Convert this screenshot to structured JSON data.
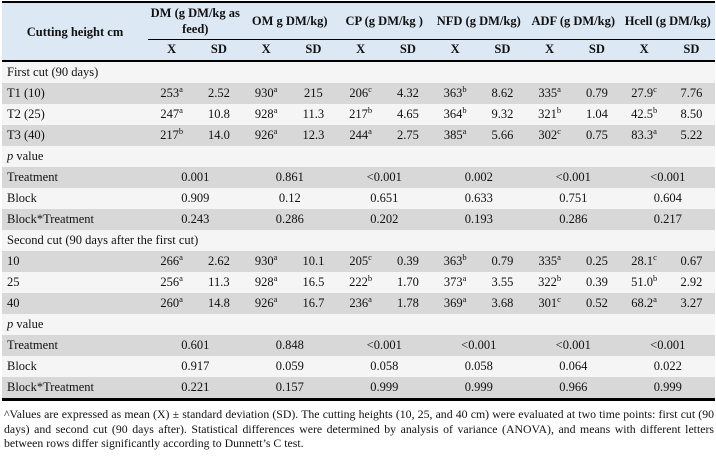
{
  "colors": {
    "header_bg": "#dce8f4",
    "stripe_gray": "#d8d8d8",
    "stripe_light": "#f5f5f5",
    "border": "#000000"
  },
  "table": {
    "row_header": "Cutting height cm",
    "groups": [
      {
        "label": "DM (g DM/kg as feed)"
      },
      {
        "label": "OM g DM/kg)"
      },
      {
        "label": "CP (g DM/kg )"
      },
      {
        "label": "NFD (g DM/kg)"
      },
      {
        "label": "ADF (g DM/kg)"
      },
      {
        "label": "Hcell (g DM/kg)"
      }
    ],
    "subheaders": [
      "X",
      "SD"
    ],
    "p_value_label": {
      "italic": "p",
      "rest": " value"
    },
    "sections": [
      {
        "title": "First cut (90 days)",
        "data_rows": [
          {
            "label": "T1 (10)",
            "cells": [
              {
                "x": "253",
                "sup": "a",
                "sd": "2.52"
              },
              {
                "x": "930",
                "sup": "a",
                "sd": "215"
              },
              {
                "x": "206",
                "sup": "c",
                "sd": "4.32"
              },
              {
                "x": "363",
                "sup": "b",
                "sd": "8.62"
              },
              {
                "x": "335",
                "sup": "a",
                "sd": "0.79"
              },
              {
                "x": "27.9",
                "sup": "c",
                "sd": "7.76"
              }
            ]
          },
          {
            "label": "T2 (25)",
            "cells": [
              {
                "x": "247",
                "sup": "a",
                "sd": "10.8"
              },
              {
                "x": "928",
                "sup": "a",
                "sd": "11.3"
              },
              {
                "x": "217",
                "sup": "b",
                "sd": "4.65"
              },
              {
                "x": "364",
                "sup": "b",
                "sd": "9.32"
              },
              {
                "x": "321",
                "sup": "b",
                "sd": "1.04"
              },
              {
                "x": "42.5",
                "sup": "b",
                "sd": "8.50"
              }
            ]
          },
          {
            "label": "T3 (40)",
            "cells": [
              {
                "x": "217",
                "sup": "b",
                "sd": "14.0"
              },
              {
                "x": "926",
                "sup": "a",
                "sd": "12.3"
              },
              {
                "x": "244",
                "sup": "a",
                "sd": "2.75"
              },
              {
                "x": "385",
                "sup": "a",
                "sd": "5.66"
              },
              {
                "x": "302",
                "sup": "c",
                "sd": "0.75"
              },
              {
                "x": "83.3",
                "sup": "a",
                "sd": "5.22"
              }
            ]
          }
        ],
        "p_rows": [
          {
            "label": "Treatment",
            "values": [
              "0.001",
              "0.861",
              "<0.001",
              "0.002",
              "<0.001",
              "<0.001"
            ]
          },
          {
            "label": "Block",
            "values": [
              "0.909",
              "0.12",
              "0.651",
              "0.633",
              "0.751",
              "0.604"
            ]
          },
          {
            "label": "Block*Treatment",
            "values": [
              "0.243",
              "0.286",
              "0.202",
              "0.193",
              "0.286",
              "0.217"
            ]
          }
        ]
      },
      {
        "title": "Second cut (90 days after the first cut)",
        "data_rows": [
          {
            "label": "10",
            "cells": [
              {
                "x": "266",
                "sup": "a",
                "sd": "2.62"
              },
              {
                "x": "930",
                "sup": "a",
                "sd": "10.1"
              },
              {
                "x": "205",
                "sup": "c",
                "sd": "0.39"
              },
              {
                "x": "363",
                "sup": "b",
                "sd": "0.79"
              },
              {
                "x": "335",
                "sup": "a",
                "sd": "0.25"
              },
              {
                "x": "28.1",
                "sup": "c",
                "sd": "0.67"
              }
            ]
          },
          {
            "label": "25",
            "cells": [
              {
                "x": "256",
                "sup": "a",
                "sd": "11.3"
              },
              {
                "x": "928",
                "sup": "a",
                "sd": "16.5"
              },
              {
                "x": "222",
                "sup": "b",
                "sd": "1.70"
              },
              {
                "x": "373",
                "sup": "a",
                "sd": "3.55"
              },
              {
                "x": "322",
                "sup": "b",
                "sd": "0.39"
              },
              {
                "x": "51.0",
                "sup": "b",
                "sd": "2.92"
              }
            ]
          },
          {
            "label": "40",
            "cells": [
              {
                "x": "260",
                "sup": "a",
                "sd": "14.8"
              },
              {
                "x": "926",
                "sup": "a",
                "sd": "16.7"
              },
              {
                "x": "236",
                "sup": "a",
                "sd": "1.78"
              },
              {
                "x": "369",
                "sup": "a",
                "sd": "3.68"
              },
              {
                "x": "301",
                "sup": "c",
                "sd": "0.52"
              },
              {
                "x": "68.2",
                "sup": "a",
                "sd": "3.27"
              }
            ]
          }
        ],
        "p_rows": [
          {
            "label": "Treatment",
            "values": [
              "0.601",
              "0.848",
              "<0.001",
              "<0.001",
              "<0.001",
              "<0.001"
            ]
          },
          {
            "label": "Block",
            "values": [
              "0.917",
              "0.059",
              "0.058",
              "0.058",
              "0.064",
              "0.022"
            ]
          },
          {
            "label": "Block*Treatment",
            "values": [
              "0.221",
              "0.157",
              "0.999",
              "0.999",
              "0.966",
              "0.999"
            ]
          }
        ]
      }
    ]
  },
  "footnote": "^Values are expressed as mean (X) ± standard deviation (SD). The cutting heights (10, 25, and 40 cm) were evaluated at two time points: first cut (90 days) and second cut (90 days after). Statistical differences were determined by analysis of variance (ANOVA), and means with different letters between rows differ significantly according to Dunnett’s C test."
}
